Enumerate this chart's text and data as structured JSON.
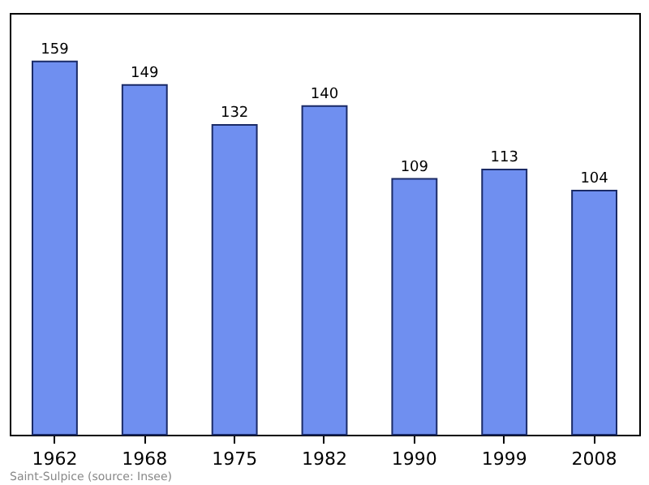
{
  "chart_data": {
    "type": "bar",
    "categories": [
      "1962",
      "1968",
      "1975",
      "1982",
      "1990",
      "1999",
      "2008"
    ],
    "values": [
      159,
      149,
      132,
      140,
      109,
      113,
      104
    ],
    "color": "#6f8ff0",
    "data_labels": true,
    "annotations": [
      "Saint-Sulpice    (source: Insee)"
    ]
  }
}
